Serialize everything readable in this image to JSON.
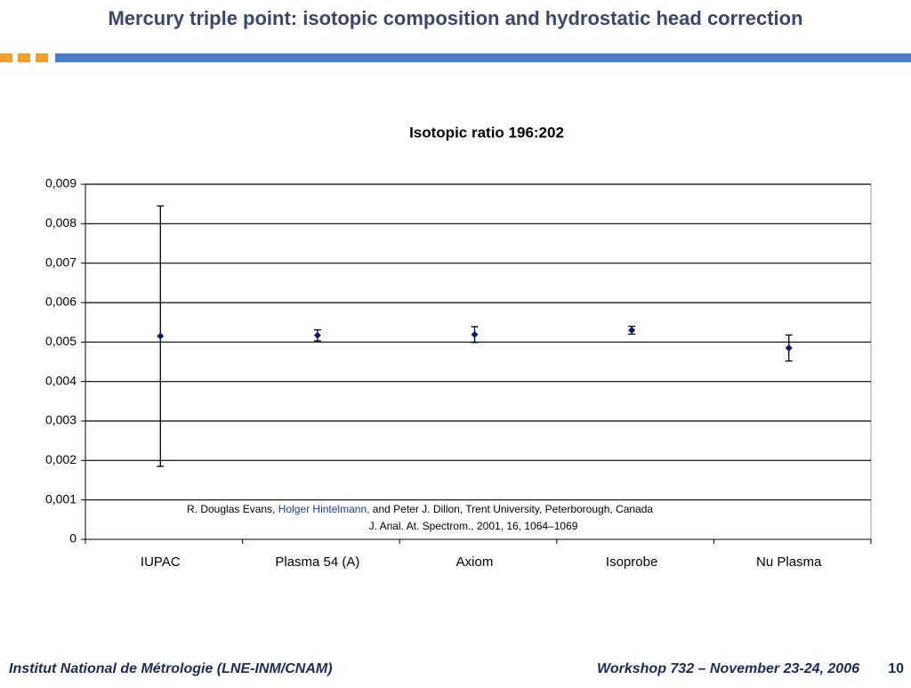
{
  "slide": {
    "title": "Mercury triple point: isotopic composition and hydrostatic head correction",
    "footer_left": "Institut National de Métrologie (LNE-INM/CNAM)",
    "footer_right": "Workshop 732 – November 23-24, 2006",
    "page_number": "10"
  },
  "chart_data": {
    "type": "errorbar",
    "title": "Isotopic ratio 196:202",
    "categories": [
      "IUPAC",
      "Plasma 54 (A)",
      "Axiom",
      "Isoprobe",
      "Nu Plasma"
    ],
    "values": [
      0.00515,
      0.00517,
      0.00519,
      0.0053,
      0.00485
    ],
    "errors": [
      0.0033,
      0.00014,
      0.0002,
      0.0001,
      0.00033
    ],
    "color": "#0a1a6b",
    "ylim": [
      0,
      0.009
    ],
    "yticks": [
      0,
      {
        "value": 0.001,
        "label": "0,001"
      },
      {
        "value": 0.002,
        "label": "0,002"
      },
      {
        "value": 0.003,
        "label": "0,003"
      },
      {
        "value": 0.004,
        "label": "0,004"
      },
      {
        "value": 0.005,
        "label": "0,005"
      },
      {
        "value": 0.006,
        "label": "0,006"
      },
      {
        "value": 0.007,
        "label": "0,007"
      },
      {
        "value": 0.008,
        "label": "0,008"
      },
      {
        "value": 0.009,
        "label": "0,009"
      }
    ],
    "grid": true,
    "annotations": [
      "R. Douglas Evans,",
      "Holger Hintelmann,",
      "and Peter J. Dillon, Trent University, Peterborough,  Canada",
      "J. Anal. At. Spectrom., 2001, 16, 1064–1069"
    ]
  }
}
